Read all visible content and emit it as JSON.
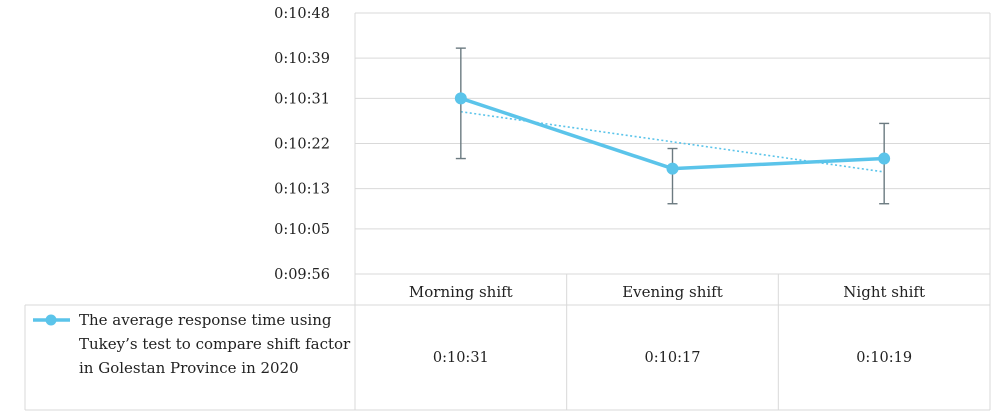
{
  "chart_data": {
    "type": "line",
    "categories": [
      "Morning shift",
      "Evening shift",
      "Night shift"
    ],
    "y_ticks": [
      "0:09:56",
      "0:10:05",
      "0:10:13",
      "0:10:22",
      "0:10:31",
      "0:10:39",
      "0:10:48"
    ],
    "ylim": [
      "0:09:56",
      "0:10:48"
    ],
    "series": [
      {
        "name": "The average response time using Tukey’s test to compare shift factor in Golestan Province  in 2020",
        "legend_lines": [
          "The average response time using",
          "Tukey’s test to compare shift factor",
          "in Golestan Province  in 2020"
        ],
        "values": [
          "0:10:31",
          "0:10:17",
          "0:10:19"
        ],
        "error_high": [
          "0:10:41",
          "0:10:21",
          "0:10:26"
        ],
        "error_low": [
          "0:10:19",
          "0:10:10",
          "0:10:10"
        ],
        "color": "#5bc4ea"
      }
    ],
    "trendline": {
      "type": "linear",
      "style": "dotted",
      "color": "#5bc4ea"
    },
    "grid": true,
    "legend": "data-table-left",
    "data_table": true
  }
}
